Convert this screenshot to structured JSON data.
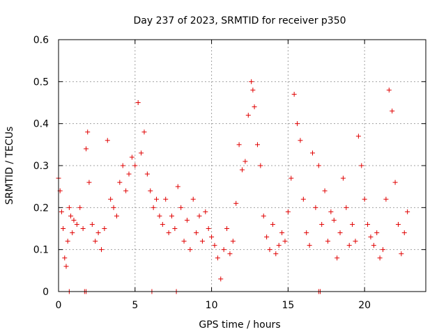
{
  "chart_data": {
    "type": "scatter",
    "title": "Day 237 of 2023, SRMTID for receiver p350",
    "xlabel": "GPS time / hours",
    "ylabel": "SRMTID / TECUs",
    "xlim": [
      0,
      24
    ],
    "ylim": [
      0,
      0.6
    ],
    "x_ticks": [
      0,
      5,
      10,
      15,
      20
    ],
    "y_ticks": [
      0,
      0.1,
      0.2,
      0.3,
      0.4,
      0.5,
      0.6
    ],
    "x_tick_labels": [
      "0",
      "5",
      "10",
      "15",
      "20"
    ],
    "y_tick_labels": [
      "0",
      "0.1",
      "0.2",
      "0.3",
      "0.4",
      "0.5",
      "0.6"
    ],
    "grid": true,
    "marker": "+",
    "color": "#e00000",
    "series": [
      {
        "name": "SRMTID",
        "x": [
          0.0,
          0.1,
          0.2,
          0.3,
          0.4,
          0.5,
          0.6,
          0.7,
          0.8,
          0.9,
          1.0,
          1.2,
          1.4,
          1.6,
          1.8,
          1.9,
          2.0,
          2.2,
          2.4,
          2.6,
          2.8,
          3.0,
          3.2,
          3.4,
          3.6,
          3.8,
          4.0,
          4.2,
          4.4,
          4.6,
          4.8,
          5.0,
          5.2,
          5.4,
          5.6,
          5.8,
          6.0,
          6.2,
          6.4,
          6.6,
          6.8,
          7.0,
          7.2,
          7.4,
          7.6,
          7.8,
          8.0,
          8.2,
          8.4,
          8.6,
          8.8,
          9.0,
          9.2,
          9.4,
          9.6,
          9.8,
          10.0,
          10.2,
          10.4,
          10.6,
          10.8,
          11.0,
          11.2,
          11.4,
          11.6,
          11.8,
          12.0,
          12.2,
          12.4,
          12.6,
          12.7,
          12.8,
          13.0,
          13.2,
          13.4,
          13.6,
          13.8,
          14.0,
          14.2,
          14.4,
          14.6,
          14.8,
          15.0,
          15.2,
          15.4,
          15.6,
          15.8,
          16.0,
          16.2,
          16.4,
          16.6,
          16.8,
          17.0,
          17.2,
          17.4,
          17.6,
          17.8,
          18.0,
          18.2,
          18.4,
          18.6,
          18.8,
          19.0,
          19.2,
          19.4,
          19.6,
          19.8,
          20.0,
          20.2,
          20.4,
          20.6,
          20.8,
          21.0,
          21.2,
          21.4,
          21.6,
          21.8,
          22.0,
          22.2,
          22.4,
          22.6,
          22.8,
          0.7,
          1.7,
          1.8,
          6.1,
          7.7,
          17.0,
          17.1
        ],
        "y": [
          0.27,
          0.24,
          0.19,
          0.15,
          0.08,
          0.06,
          0.12,
          0.2,
          0.18,
          0.14,
          0.17,
          0.16,
          0.2,
          0.15,
          0.34,
          0.38,
          0.26,
          0.16,
          0.12,
          0.14,
          0.1,
          0.15,
          0.36,
          0.22,
          0.2,
          0.18,
          0.26,
          0.3,
          0.24,
          0.28,
          0.32,
          0.3,
          0.45,
          0.33,
          0.38,
          0.28,
          0.24,
          0.2,
          0.22,
          0.18,
          0.16,
          0.22,
          0.14,
          0.18,
          0.15,
          0.25,
          0.2,
          0.12,
          0.17,
          0.1,
          0.22,
          0.14,
          0.18,
          0.12,
          0.19,
          0.15,
          0.13,
          0.11,
          0.08,
          0.03,
          0.1,
          0.15,
          0.09,
          0.12,
          0.21,
          0.35,
          0.29,
          0.31,
          0.42,
          0.5,
          0.48,
          0.44,
          0.35,
          0.3,
          0.18,
          0.13,
          0.1,
          0.16,
          0.09,
          0.11,
          0.14,
          0.12,
          0.19,
          0.27,
          0.47,
          0.4,
          0.36,
          0.22,
          0.14,
          0.11,
          0.33,
          0.2,
          0.3,
          0.16,
          0.24,
          0.12,
          0.19,
          0.17,
          0.08,
          0.14,
          0.27,
          0.2,
          0.11,
          0.16,
          0.12,
          0.37,
          0.3,
          0.22,
          0.16,
          0.13,
          0.11,
          0.14,
          0.08,
          0.1,
          0.22,
          0.48,
          0.43,
          0.26,
          0.16,
          0.09,
          0.14,
          0.19,
          0.0,
          0.0,
          0.0,
          0.0,
          0.0,
          0.0,
          0.0
        ]
      }
    ]
  }
}
